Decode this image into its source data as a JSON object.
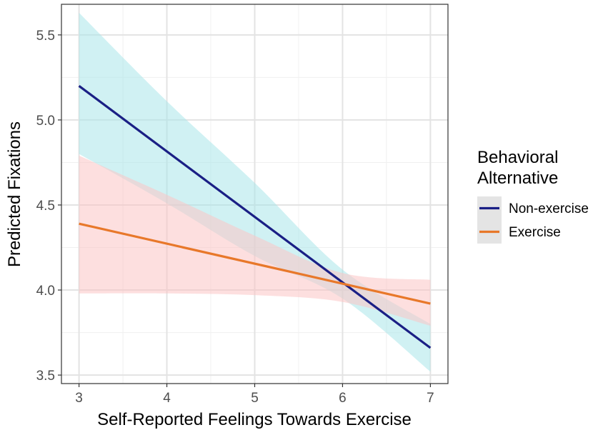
{
  "chart_data": {
    "type": "line",
    "xlabel": "Self-Reported Feelings Towards Exercise",
    "ylabel": "Predicted Fixations",
    "xlim": [
      2.8,
      7.2
    ],
    "ylim": [
      3.45,
      5.68
    ],
    "x_ticks": [
      3,
      4,
      5,
      6,
      7
    ],
    "x_tick_labels": [
      "3",
      "4",
      "5",
      "6",
      "7"
    ],
    "y_ticks": [
      3.5,
      4.0,
      4.5,
      5.0,
      5.5
    ],
    "y_tick_labels": [
      "3.5",
      "4.0",
      "4.5",
      "5.0",
      "5.5"
    ],
    "grid": true,
    "legend": {
      "title_lines": [
        "Behavioral",
        "Alternative"
      ],
      "position": "right"
    },
    "series": [
      {
        "name": "Non-exercise",
        "color": "#1a1f85",
        "band_color": "#a9e6ea",
        "x": [
          3,
          7
        ],
        "y": [
          5.2,
          3.66
        ],
        "ci_x": [
          3,
          4,
          5,
          6,
          7
        ],
        "ci_lower": [
          4.8,
          4.51,
          4.2,
          3.95,
          3.52
        ],
        "ci_upper": [
          5.63,
          5.11,
          4.63,
          4.12,
          3.8
        ]
      },
      {
        "name": "Exercise",
        "color": "#e8782a",
        "band_color": "#fcc4c4",
        "x": [
          3,
          7
        ],
        "y": [
          4.39,
          3.92
        ],
        "ci_x": [
          3,
          4,
          5,
          6,
          7
        ],
        "ci_lower": [
          3.98,
          3.98,
          3.97,
          3.93,
          3.79
        ],
        "ci_upper": [
          4.79,
          4.56,
          4.32,
          4.1,
          4.06
        ]
      }
    ]
  }
}
